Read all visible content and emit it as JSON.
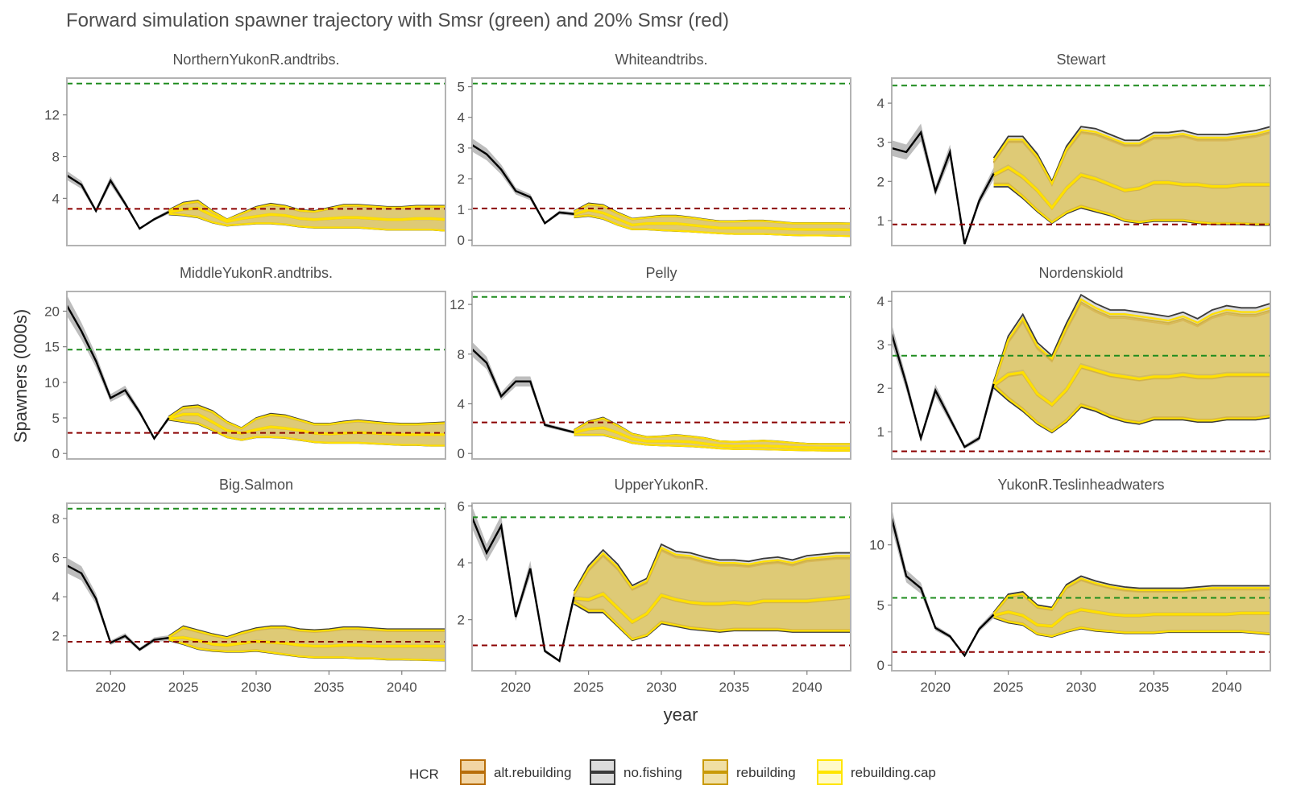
{
  "title": "Forward simulation spawner trajectory with Smsr (green) and 20% Smsr (red)",
  "xlabel": "year",
  "ylabel": "Spawners (000s)",
  "legend": {
    "title": "HCR",
    "position": "bottom",
    "items": [
      {
        "label": "alt.rebuilding",
        "fill": "#e8b35a",
        "line": "#b86e0a"
      },
      {
        "label": "no.fishing",
        "fill": "#bdbdbd",
        "line": "#3a3a3a"
      },
      {
        "label": "rebuilding",
        "fill": "#e3c45a",
        "line": "#c99a08"
      },
      {
        "label": "rebuilding.cap",
        "fill": "#fff59a",
        "line": "#ffe500"
      }
    ]
  },
  "colors": {
    "smsr_line": "#1e8c1e",
    "smsr20_line": "#8b0000",
    "historical": "#000000",
    "historical_band": "#bdbdbd",
    "panel_border": "#b3b3b3"
  },
  "chart_data": [
    {
      "type": "line",
      "panel": "NorthernYukonR.andtribs.",
      "x_range": [
        2017,
        2043
      ],
      "ylim": [
        0,
        15
      ],
      "yticks": [
        4,
        8,
        12
      ],
      "xticks": [
        2020,
        2025,
        2030,
        2035,
        2040
      ],
      "smsr": 15.0,
      "smsr20": 3.0,
      "historical": {
        "years": [
          2017,
          2018,
          2019,
          2020,
          2021,
          2022,
          2023,
          2024
        ],
        "values": [
          6.2,
          5.3,
          2.8,
          5.7,
          3.5,
          1.1,
          2.0,
          2.7
        ]
      },
      "projection": {
        "years": [
          2024,
          2025,
          2026,
          2027,
          2028,
          2029,
          2030,
          2031,
          2032,
          2033,
          2034,
          2035,
          2036,
          2037,
          2038,
          2039,
          2040,
          2041,
          2042,
          2043
        ],
        "median": [
          2.7,
          3.0,
          3.1,
          2.4,
          1.8,
          2.1,
          2.3,
          2.5,
          2.4,
          2.1,
          2.0,
          2.1,
          2.2,
          2.2,
          2.1,
          2.0,
          2.0,
          2.1,
          2.1,
          2.0
        ],
        "upper": [
          2.9,
          3.6,
          3.8,
          2.8,
          2.0,
          2.6,
          3.2,
          3.5,
          3.3,
          2.9,
          2.8,
          3.1,
          3.4,
          3.4,
          3.3,
          3.2,
          3.2,
          3.3,
          3.3,
          3.3
        ],
        "lower": [
          2.5,
          2.4,
          2.2,
          1.7,
          1.4,
          1.5,
          1.6,
          1.6,
          1.5,
          1.3,
          1.2,
          1.2,
          1.2,
          1.2,
          1.1,
          1.0,
          1.0,
          1.0,
          1.0,
          0.9
        ]
      }
    },
    {
      "type": "line",
      "panel": "Whiteandtribs.",
      "x_range": [
        2017,
        2043
      ],
      "ylim": [
        0,
        5.1
      ],
      "yticks": [
        0,
        1,
        2,
        3,
        4,
        5
      ],
      "xticks": [
        2020,
        2025,
        2030,
        2035,
        2040
      ],
      "smsr": 5.1,
      "smsr20": 1.03,
      "historical": {
        "years": [
          2017,
          2018,
          2019,
          2020,
          2021,
          2022,
          2023,
          2024
        ],
        "values": [
          3.1,
          2.8,
          2.3,
          1.6,
          1.4,
          0.55,
          0.9,
          0.85
        ]
      },
      "projection": {
        "years": [
          2024,
          2025,
          2026,
          2027,
          2028,
          2029,
          2030,
          2031,
          2032,
          2033,
          2034,
          2035,
          2036,
          2037,
          2038,
          2039,
          2040,
          2041,
          2042,
          2043
        ],
        "median": [
          0.85,
          1.0,
          0.9,
          0.7,
          0.5,
          0.55,
          0.55,
          0.55,
          0.5,
          0.45,
          0.4,
          0.4,
          0.4,
          0.4,
          0.38,
          0.36,
          0.35,
          0.35,
          0.35,
          0.34
        ],
        "upper": [
          0.95,
          1.2,
          1.15,
          0.9,
          0.7,
          0.75,
          0.8,
          0.8,
          0.75,
          0.68,
          0.62,
          0.62,
          0.64,
          0.64,
          0.6,
          0.56,
          0.56,
          0.56,
          0.56,
          0.55
        ],
        "lower": [
          0.75,
          0.8,
          0.7,
          0.5,
          0.35,
          0.35,
          0.32,
          0.3,
          0.28,
          0.25,
          0.22,
          0.2,
          0.2,
          0.2,
          0.18,
          0.16,
          0.15,
          0.15,
          0.14,
          0.13
        ]
      }
    },
    {
      "type": "line",
      "panel": "Stewart",
      "x_range": [
        2017,
        2043
      ],
      "ylim": [
        0.5,
        4.5
      ],
      "yticks": [
        1,
        2,
        3,
        4
      ],
      "xticks": [
        2020,
        2025,
        2030,
        2035,
        2040
      ],
      "smsr": 4.45,
      "smsr20": 0.9,
      "historical": {
        "years": [
          2017,
          2018,
          2019,
          2020,
          2021,
          2022,
          2023,
          2024
        ],
        "values": [
          2.85,
          2.75,
          3.25,
          1.75,
          2.75,
          0.4,
          1.5,
          2.2
        ]
      },
      "projection": {
        "years": [
          2024,
          2025,
          2026,
          2027,
          2028,
          2029,
          2030,
          2031,
          2032,
          2033,
          2034,
          2035,
          2036,
          2037,
          2038,
          2039,
          2040,
          2041,
          2042,
          2043
        ],
        "median": [
          2.2,
          2.4,
          2.15,
          1.8,
          1.35,
          1.85,
          2.2,
          2.1,
          1.95,
          1.8,
          1.85,
          2.0,
          2.0,
          1.95,
          1.95,
          1.9,
          1.9,
          1.95,
          1.95,
          1.95
        ],
        "upper": [
          2.6,
          3.15,
          3.15,
          2.7,
          2.0,
          2.9,
          3.4,
          3.35,
          3.2,
          3.05,
          3.05,
          3.25,
          3.25,
          3.3,
          3.2,
          3.2,
          3.2,
          3.25,
          3.3,
          3.4
        ],
        "lower": [
          1.9,
          1.9,
          1.6,
          1.25,
          0.95,
          1.2,
          1.35,
          1.25,
          1.15,
          1.0,
          0.95,
          1.0,
          1.0,
          1.0,
          0.95,
          0.92,
          0.92,
          0.92,
          0.9,
          0.9
        ]
      }
    },
    {
      "type": "line",
      "panel": "MiddleYukonR.andtribs.",
      "x_range": [
        2017,
        2043
      ],
      "ylim": [
        0,
        22
      ],
      "yticks": [
        0,
        5,
        10,
        15,
        20
      ],
      "xticks": [
        2020,
        2025,
        2030,
        2035,
        2040
      ],
      "smsr": 14.6,
      "smsr20": 2.9,
      "historical": {
        "years": [
          2017,
          2018,
          2019,
          2020,
          2021,
          2022,
          2023,
          2024
        ],
        "values": [
          20.8,
          17.2,
          13.0,
          7.8,
          8.9,
          5.8,
          2.1,
          5.0
        ]
      },
      "projection": {
        "years": [
          2024,
          2025,
          2026,
          2027,
          2028,
          2029,
          2030,
          2031,
          2032,
          2033,
          2034,
          2035,
          2036,
          2037,
          2038,
          2039,
          2040,
          2041,
          2042,
          2043
        ],
        "median": [
          5.0,
          5.6,
          5.6,
          4.5,
          3.3,
          2.9,
          3.4,
          3.8,
          3.6,
          3.3,
          2.9,
          2.8,
          2.9,
          3.0,
          2.9,
          2.8,
          2.7,
          2.7,
          2.7,
          2.7
        ],
        "upper": [
          5.2,
          6.6,
          6.8,
          6.0,
          4.5,
          3.6,
          5.0,
          5.6,
          5.4,
          4.8,
          4.2,
          4.2,
          4.5,
          4.7,
          4.5,
          4.3,
          4.2,
          4.2,
          4.3,
          4.4
        ],
        "lower": [
          4.8,
          4.5,
          4.2,
          3.3,
          2.3,
          1.9,
          2.3,
          2.3,
          2.2,
          1.9,
          1.6,
          1.5,
          1.5,
          1.5,
          1.4,
          1.3,
          1.2,
          1.2,
          1.1,
          1.1
        ]
      }
    },
    {
      "type": "line",
      "panel": "Pelly",
      "x_range": [
        2017,
        2043
      ],
      "ylim": [
        0,
        12.6
      ],
      "yticks": [
        0,
        4,
        8,
        12
      ],
      "xticks": [
        2020,
        2025,
        2030,
        2035,
        2040
      ],
      "smsr": 12.6,
      "smsr20": 2.5,
      "historical": {
        "years": [
          2017,
          2018,
          2019,
          2020,
          2021,
          2022,
          2023,
          2024
        ],
        "values": [
          8.4,
          7.3,
          4.6,
          5.8,
          5.8,
          2.3,
          2.0,
          1.7
        ]
      },
      "projection": {
        "years": [
          2024,
          2025,
          2026,
          2027,
          2028,
          2029,
          2030,
          2031,
          2032,
          2033,
          2034,
          2035,
          2036,
          2037,
          2038,
          2039,
          2040,
          2041,
          2042,
          2043
        ],
        "median": [
          1.7,
          2.0,
          2.1,
          1.7,
          1.2,
          1.0,
          1.0,
          1.0,
          0.95,
          0.8,
          0.65,
          0.6,
          0.62,
          0.62,
          0.58,
          0.52,
          0.48,
          0.46,
          0.45,
          0.44
        ],
        "upper": [
          1.9,
          2.6,
          2.9,
          2.3,
          1.6,
          1.35,
          1.4,
          1.5,
          1.4,
          1.25,
          1.0,
          0.95,
          1.0,
          1.05,
          0.98,
          0.88,
          0.8,
          0.78,
          0.78,
          0.78
        ],
        "lower": [
          1.5,
          1.5,
          1.5,
          1.2,
          0.85,
          0.7,
          0.65,
          0.62,
          0.58,
          0.5,
          0.4,
          0.35,
          0.34,
          0.33,
          0.3,
          0.27,
          0.25,
          0.23,
          0.22,
          0.22
        ]
      }
    },
    {
      "type": "line",
      "panel": "Nordenskiold",
      "x_range": [
        2017,
        2043
      ],
      "ylim": [
        0.5,
        4.1
      ],
      "yticks": [
        1,
        2,
        3,
        4
      ],
      "xticks": [
        2020,
        2025,
        2030,
        2035,
        2040
      ],
      "smsr": 2.75,
      "smsr20": 0.55,
      "historical": {
        "years": [
          2017,
          2018,
          2019,
          2020,
          2021,
          2022,
          2023,
          2024
        ],
        "values": [
          3.25,
          2.1,
          0.85,
          1.95,
          1.3,
          0.65,
          0.85,
          2.1
        ]
      },
      "projection": {
        "years": [
          2024,
          2025,
          2026,
          2027,
          2028,
          2029,
          2030,
          2031,
          2032,
          2033,
          2034,
          2035,
          2036,
          2037,
          2038,
          2039,
          2040,
          2041,
          2042,
          2043
        ],
        "median": [
          2.1,
          2.35,
          2.4,
          1.9,
          1.65,
          2.0,
          2.55,
          2.45,
          2.35,
          2.3,
          2.25,
          2.3,
          2.3,
          2.35,
          2.3,
          2.3,
          2.35,
          2.35,
          2.35,
          2.35
        ],
        "upper": [
          2.15,
          3.2,
          3.7,
          3.05,
          2.75,
          3.5,
          4.15,
          3.95,
          3.8,
          3.8,
          3.75,
          3.7,
          3.65,
          3.75,
          3.6,
          3.8,
          3.9,
          3.85,
          3.85,
          3.95
        ],
        "lower": [
          2.05,
          1.75,
          1.5,
          1.2,
          1.0,
          1.25,
          1.6,
          1.5,
          1.35,
          1.25,
          1.2,
          1.3,
          1.3,
          1.3,
          1.25,
          1.25,
          1.3,
          1.3,
          1.3,
          1.35
        ]
      }
    },
    {
      "type": "line",
      "panel": "Big.Salmon",
      "x_range": [
        2017,
        2043
      ],
      "ylim": [
        0.5,
        8.5
      ],
      "yticks": [
        2,
        4,
        6,
        8
      ],
      "xticks": [
        2020,
        2025,
        2030,
        2035,
        2040
      ],
      "smsr": 8.5,
      "smsr20": 1.7,
      "historical": {
        "years": [
          2017,
          2018,
          2019,
          2020,
          2021,
          2022,
          2023,
          2024
        ],
        "values": [
          5.6,
          5.2,
          3.9,
          1.65,
          2.0,
          1.3,
          1.8,
          1.9
        ]
      },
      "projection": {
        "years": [
          2024,
          2025,
          2026,
          2027,
          2028,
          2029,
          2030,
          2031,
          2032,
          2033,
          2034,
          2035,
          2036,
          2037,
          2038,
          2039,
          2040,
          2041,
          2042,
          2043
        ],
        "median": [
          1.9,
          1.95,
          1.8,
          1.6,
          1.55,
          1.65,
          1.75,
          1.7,
          1.65,
          1.55,
          1.5,
          1.5,
          1.55,
          1.55,
          1.5,
          1.5,
          1.5,
          1.5,
          1.5,
          1.5
        ],
        "upper": [
          2.0,
          2.5,
          2.3,
          2.1,
          1.95,
          2.2,
          2.4,
          2.5,
          2.5,
          2.35,
          2.3,
          2.35,
          2.45,
          2.45,
          2.4,
          2.35,
          2.35,
          2.35,
          2.35,
          2.35
        ],
        "lower": [
          1.8,
          1.6,
          1.35,
          1.25,
          1.2,
          1.2,
          1.25,
          1.15,
          1.05,
          0.95,
          0.9,
          0.9,
          0.9,
          0.85,
          0.85,
          0.8,
          0.8,
          0.78,
          0.76,
          0.75
        ]
      }
    },
    {
      "type": "line",
      "panel": "UpperYukonR.",
      "x_range": [
        2017,
        2043
      ],
      "ylim": [
        0.4,
        5.9
      ],
      "yticks": [
        2,
        4,
        6
      ],
      "xticks": [
        2020,
        2025,
        2030,
        2035,
        2040
      ],
      "smsr": 5.6,
      "smsr20": 1.1,
      "historical": {
        "years": [
          2017,
          2018,
          2019,
          2020,
          2021,
          2022,
          2023,
          2024
        ],
        "values": [
          5.6,
          4.35,
          5.3,
          2.1,
          3.8,
          0.9,
          0.55,
          2.8
        ]
      },
      "projection": {
        "years": [
          2024,
          2025,
          2026,
          2027,
          2028,
          2029,
          2030,
          2031,
          2032,
          2033,
          2034,
          2035,
          2036,
          2037,
          2038,
          2039,
          2040,
          2041,
          2042,
          2043
        ],
        "median": [
          2.8,
          2.75,
          2.95,
          2.45,
          1.95,
          2.25,
          2.9,
          2.75,
          2.65,
          2.6,
          2.6,
          2.65,
          2.6,
          2.7,
          2.7,
          2.7,
          2.7,
          2.75,
          2.8,
          2.85
        ],
        "upper": [
          3.0,
          3.9,
          4.45,
          3.95,
          3.2,
          3.45,
          4.65,
          4.4,
          4.35,
          4.2,
          4.1,
          4.1,
          4.05,
          4.15,
          4.2,
          4.1,
          4.25,
          4.3,
          4.35,
          4.35
        ],
        "lower": [
          2.6,
          2.3,
          2.3,
          1.8,
          1.3,
          1.45,
          1.9,
          1.8,
          1.7,
          1.65,
          1.6,
          1.65,
          1.65,
          1.65,
          1.65,
          1.6,
          1.6,
          1.6,
          1.6,
          1.6
        ]
      }
    },
    {
      "type": "line",
      "panel": "YukonR.Teslinheadwaters",
      "x_range": [
        2017,
        2043
      ],
      "ylim": [
        0,
        13
      ],
      "yticks": [
        0,
        5,
        10
      ],
      "xticks": [
        2020,
        2025,
        2030,
        2035,
        2040
      ],
      "smsr": 5.6,
      "smsr20": 1.1,
      "historical": {
        "years": [
          2017,
          2018,
          2019,
          2020,
          2021,
          2022,
          2023,
          2024
        ],
        "values": [
          12.2,
          7.4,
          6.4,
          3.1,
          2.4,
          0.8,
          3.0,
          4.2
        ]
      },
      "projection": {
        "years": [
          2024,
          2025,
          2026,
          2027,
          2028,
          2029,
          2030,
          2031,
          2032,
          2033,
          2034,
          2035,
          2036,
          2037,
          2038,
          2039,
          2040,
          2041,
          2042,
          2043
        ],
        "median": [
          4.2,
          4.5,
          4.2,
          3.4,
          3.3,
          4.3,
          4.7,
          4.5,
          4.3,
          4.2,
          4.2,
          4.3,
          4.3,
          4.3,
          4.3,
          4.3,
          4.3,
          4.4,
          4.4,
          4.4
        ],
        "upper": [
          4.4,
          5.9,
          6.1,
          5.0,
          4.8,
          6.7,
          7.4,
          7.0,
          6.7,
          6.5,
          6.4,
          6.4,
          6.4,
          6.4,
          6.5,
          6.6,
          6.6,
          6.6,
          6.6,
          6.6
        ],
        "lower": [
          4.0,
          3.6,
          3.4,
          2.6,
          2.4,
          2.8,
          3.1,
          2.9,
          2.8,
          2.7,
          2.7,
          2.7,
          2.8,
          2.8,
          2.8,
          2.8,
          2.8,
          2.8,
          2.7,
          2.6
        ]
      }
    }
  ]
}
